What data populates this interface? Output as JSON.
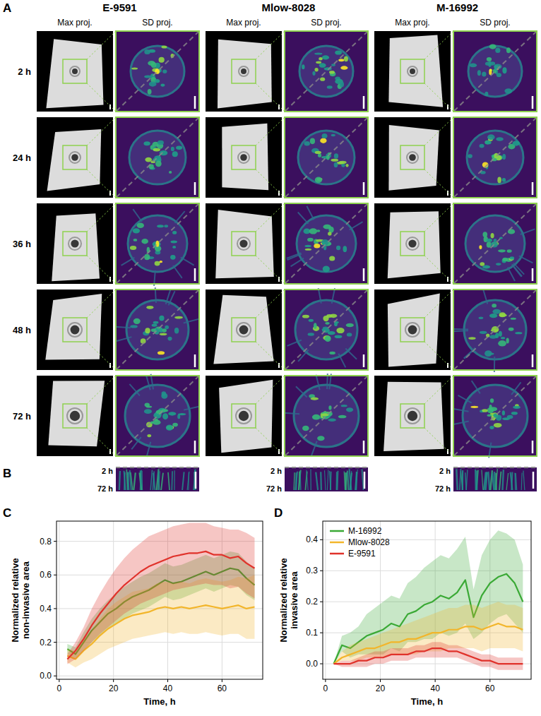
{
  "panel_a": {
    "letter": "A",
    "groups": [
      {
        "title": "E-9591",
        "columns": [
          "Max proj.",
          "SD proj."
        ]
      },
      {
        "title": "Mlow-8028",
        "columns": [
          "Max proj.",
          "SD proj."
        ]
      },
      {
        "title": "M-16992",
        "columns": [
          "Max proj.",
          "SD proj."
        ]
      }
    ],
    "times": [
      "2 h",
      "24 h",
      "36 h",
      "48 h",
      "72 h"
    ]
  },
  "panel_b": {
    "letter": "B",
    "labels": [
      "2 h",
      "72 h"
    ]
  },
  "chart_data": [
    {
      "type": "line",
      "letter": "C",
      "xlabel": "Time, h",
      "ylabel": "Normalized relative non-invasive area",
      "xlim": [
        -1,
        75
      ],
      "ylim": [
        -0.02,
        0.92
      ],
      "xticks": [
        0,
        20,
        40,
        60
      ],
      "yticks": [
        {
          "value": 0,
          "label": "0.0"
        },
        {
          "value": 0.2,
          "label": "0.2"
        },
        {
          "value": 0.4,
          "label": "0.4"
        },
        {
          "value": 0.6,
          "label": "0.6"
        },
        {
          "value": 0.8,
          "label": "0.8"
        }
      ],
      "grid": true,
      "x": [
        3,
        6,
        9,
        12,
        15,
        18,
        21,
        24,
        27,
        30,
        33,
        36,
        39,
        42,
        45,
        48,
        51,
        54,
        57,
        60,
        63,
        66,
        69,
        72
      ],
      "series": [
        {
          "name": "M-16992",
          "color": "#3aa935",
          "values": [
            0.16,
            0.13,
            0.2,
            0.27,
            0.32,
            0.37,
            0.4,
            0.44,
            0.47,
            0.49,
            0.51,
            0.54,
            0.57,
            0.55,
            0.56,
            0.58,
            0.6,
            0.62,
            0.6,
            0.62,
            0.64,
            0.63,
            0.58,
            0.54
          ],
          "lower": [
            0.13,
            0.1,
            0.15,
            0.2,
            0.24,
            0.28,
            0.31,
            0.34,
            0.37,
            0.39,
            0.41,
            0.44,
            0.47,
            0.45,
            0.46,
            0.48,
            0.5,
            0.52,
            0.5,
            0.52,
            0.54,
            0.53,
            0.48,
            0.45
          ],
          "upper": [
            0.19,
            0.17,
            0.26,
            0.34,
            0.4,
            0.45,
            0.49,
            0.53,
            0.56,
            0.59,
            0.61,
            0.64,
            0.67,
            0.65,
            0.66,
            0.68,
            0.7,
            0.72,
            0.7,
            0.72,
            0.74,
            0.73,
            0.68,
            0.64
          ]
        },
        {
          "name": "Mlow-8028",
          "color": "#f2b52a",
          "values": [
            0.12,
            0.1,
            0.15,
            0.19,
            0.24,
            0.28,
            0.31,
            0.34,
            0.36,
            0.37,
            0.38,
            0.4,
            0.41,
            0.4,
            0.41,
            0.4,
            0.41,
            0.42,
            0.41,
            0.4,
            0.41,
            0.42,
            0.4,
            0.41
          ],
          "lower": [
            0.08,
            0.05,
            0.08,
            0.1,
            0.13,
            0.16,
            0.18,
            0.2,
            0.22,
            0.23,
            0.24,
            0.25,
            0.26,
            0.25,
            0.26,
            0.25,
            0.25,
            0.26,
            0.25,
            0.24,
            0.25,
            0.25,
            0.22,
            0.22
          ],
          "upper": [
            0.16,
            0.15,
            0.21,
            0.27,
            0.34,
            0.4,
            0.44,
            0.47,
            0.5,
            0.51,
            0.52,
            0.55,
            0.56,
            0.55,
            0.56,
            0.55,
            0.57,
            0.58,
            0.57,
            0.56,
            0.57,
            0.59,
            0.58,
            0.6
          ]
        },
        {
          "name": "E-9591",
          "color": "#e0322b",
          "values": [
            0.1,
            0.15,
            0.22,
            0.3,
            0.37,
            0.43,
            0.49,
            0.54,
            0.58,
            0.62,
            0.65,
            0.67,
            0.69,
            0.71,
            0.72,
            0.73,
            0.73,
            0.74,
            0.72,
            0.72,
            0.7,
            0.71,
            0.67,
            0.64
          ],
          "lower": [
            0.07,
            0.1,
            0.15,
            0.2,
            0.25,
            0.29,
            0.33,
            0.37,
            0.4,
            0.43,
            0.45,
            0.47,
            0.49,
            0.51,
            0.52,
            0.53,
            0.54,
            0.55,
            0.54,
            0.54,
            0.52,
            0.53,
            0.49,
            0.46
          ],
          "upper": [
            0.13,
            0.2,
            0.29,
            0.4,
            0.49,
            0.57,
            0.64,
            0.7,
            0.75,
            0.79,
            0.83,
            0.85,
            0.87,
            0.89,
            0.9,
            0.91,
            0.91,
            0.91,
            0.89,
            0.88,
            0.87,
            0.87,
            0.85,
            0.82
          ]
        }
      ]
    },
    {
      "type": "line",
      "letter": "D",
      "xlabel": "Time, h",
      "ylabel": "Normalized relative invasive area",
      "xlim": [
        -1,
        75
      ],
      "ylim": [
        -0.05,
        0.46
      ],
      "xticks": [
        0,
        20,
        40,
        60
      ],
      "yticks": [
        {
          "value": 0,
          "label": "0.0"
        },
        {
          "value": 0.1,
          "label": "0.1"
        },
        {
          "value": 0.2,
          "label": "0.2"
        },
        {
          "value": 0.3,
          "label": "0.3"
        },
        {
          "value": 0.4,
          "label": "0.4"
        }
      ],
      "grid": true,
      "legend": "upper left",
      "x": [
        3,
        6,
        9,
        12,
        15,
        18,
        21,
        24,
        27,
        30,
        33,
        36,
        39,
        42,
        45,
        48,
        51,
        54,
        57,
        60,
        63,
        66,
        69,
        72
      ],
      "series": [
        {
          "name": "M-16992",
          "color": "#3aa935",
          "values": [
            0,
            0.06,
            0.05,
            0.07,
            0.09,
            0.1,
            0.11,
            0.13,
            0.12,
            0.16,
            0.17,
            0.19,
            0.2,
            0.22,
            0.21,
            0.23,
            0.27,
            0.15,
            0.22,
            0.26,
            0.28,
            0.29,
            0.26,
            0.2
          ],
          "lower": [
            0,
            0.04,
            0.02,
            0.03,
            0.03,
            0.03,
            0.03,
            0.05,
            0.04,
            0.07,
            0.07,
            0.08,
            0.08,
            0.1,
            0.09,
            0.1,
            0.13,
            0.08,
            0.1,
            0.13,
            0.15,
            0.16,
            0.13,
            0.1
          ],
          "upper": [
            0,
            0.09,
            0.1,
            0.12,
            0.16,
            0.18,
            0.2,
            0.22,
            0.21,
            0.26,
            0.28,
            0.31,
            0.33,
            0.35,
            0.34,
            0.37,
            0.41,
            0.24,
            0.35,
            0.4,
            0.43,
            0.42,
            0.4,
            0.32
          ]
        },
        {
          "name": "Mlow-8028",
          "color": "#f2b52a",
          "values": [
            0,
            0.02,
            0.03,
            0.04,
            0.05,
            0.05,
            0.06,
            0.07,
            0.07,
            0.08,
            0.08,
            0.09,
            0.1,
            0.1,
            0.11,
            0.11,
            0.12,
            0.12,
            0.11,
            0.12,
            0.13,
            0.12,
            0.12,
            0.11
          ],
          "lower": [
            0,
            0.01,
            0.01,
            0.01,
            0.02,
            0.02,
            0.02,
            0.03,
            0.03,
            0.03,
            0.03,
            0.04,
            0.04,
            0.04,
            0.05,
            0.05,
            0.05,
            0.05,
            0.04,
            0.05,
            0.05,
            0.05,
            0.05,
            0.04
          ],
          "upper": [
            0,
            0.04,
            0.06,
            0.07,
            0.08,
            0.09,
            0.1,
            0.11,
            0.12,
            0.13,
            0.14,
            0.15,
            0.16,
            0.17,
            0.18,
            0.18,
            0.19,
            0.19,
            0.18,
            0.19,
            0.2,
            0.19,
            0.19,
            0.18
          ]
        },
        {
          "name": "E-9591",
          "color": "#e0322b",
          "values": [
            0,
            0,
            0,
            0.01,
            0.01,
            0.02,
            0.02,
            0.03,
            0.03,
            0.03,
            0.04,
            0.04,
            0.05,
            0.05,
            0.04,
            0.04,
            0.03,
            0.02,
            0.01,
            0.01,
            0,
            0,
            0,
            0
          ],
          "lower": [
            0,
            -0.01,
            -0.01,
            -0.01,
            -0.01,
            0,
            0,
            0.01,
            0.01,
            0.01,
            0.02,
            0.02,
            0.02,
            0.02,
            0.02,
            0.02,
            0.01,
            0,
            -0.01,
            -0.01,
            -0.02,
            -0.02,
            -0.02,
            -0.02
          ],
          "upper": [
            0,
            0.01,
            0.01,
            0.02,
            0.03,
            0.04,
            0.04,
            0.05,
            0.05,
            0.05,
            0.06,
            0.06,
            0.07,
            0.07,
            0.06,
            0.06,
            0.05,
            0.04,
            0.03,
            0.03,
            0.02,
            0.02,
            0.02,
            0.02
          ]
        }
      ]
    }
  ]
}
